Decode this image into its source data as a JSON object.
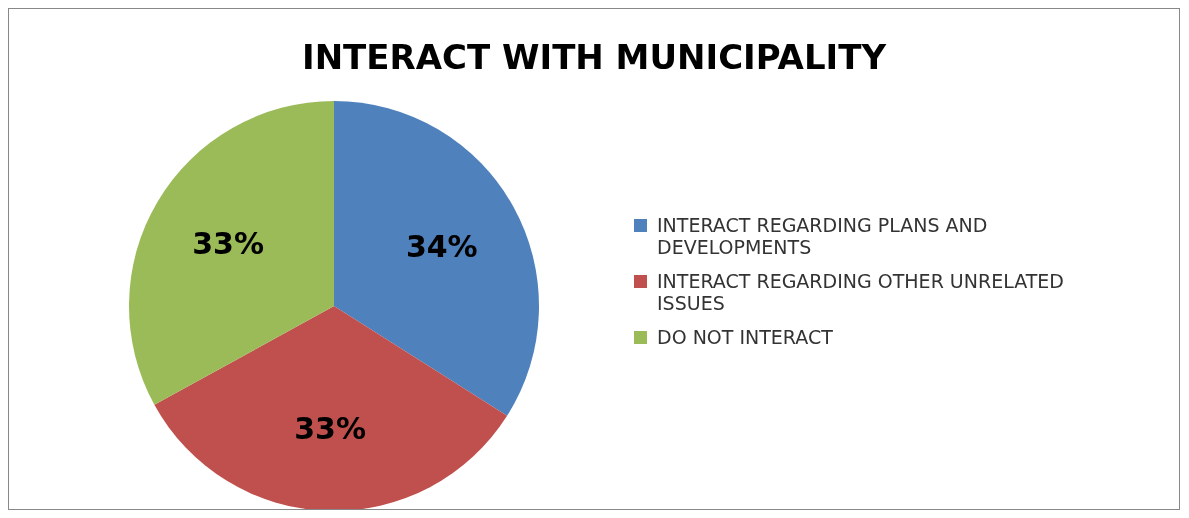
{
  "chart_data": {
    "type": "pie",
    "title": "INTERACT WITH MUNICIPALITY",
    "categories": [
      "INTERACT REGARDING PLANS AND DEVELOPMENTS",
      "INTERACT REGARDING OTHER UNRELATED ISSUES",
      "DO NOT INTERACT"
    ],
    "values": [
      34,
      33,
      33
    ],
    "value_labels": [
      "34%",
      "33%",
      "33%"
    ],
    "colors": [
      "#4f81bd",
      "#c0504d",
      "#9bbb59"
    ],
    "legend": "right"
  }
}
